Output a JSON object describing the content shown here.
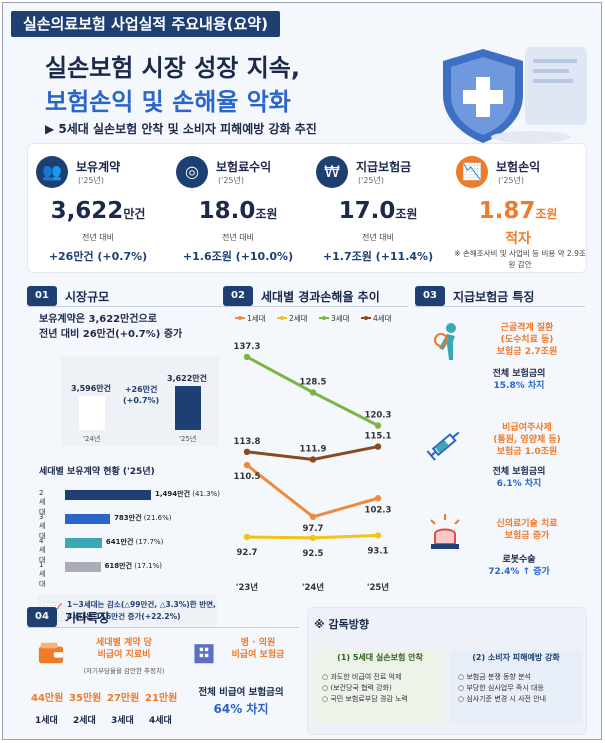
{
  "header": {
    "tag": "실손의료보험 사업실적 주요내용(요약)",
    "title_line1": "실손보험 시장 성장 지속,",
    "title_line2": "보험손익 및 손해율 악화",
    "subtitle": "▶ 5세대 실손보험 안착 및 소비자 피해예방 강화 추진"
  },
  "kpis": [
    {
      "name": "보유계약",
      "year": "('25년)",
      "value": "3,622",
      "unit": "만건",
      "compare": "전년 대비",
      "delta": "+26만건 (+0.7%)",
      "icon": "people-icon"
    },
    {
      "name": "보험료수익",
      "year": "('25년)",
      "value": "18.0",
      "unit": "조원",
      "compare": "전년 대비",
      "delta": "+1.6조원 (+10.0%)",
      "icon": "coins-icon"
    },
    {
      "name": "지급보험금",
      "year": "('25년)",
      "value": "17.0",
      "unit": "조원",
      "compare": "전년 대비",
      "delta": "+1.7조원 (+11.4%)",
      "icon": "won-hand-icon"
    },
    {
      "name": "보험손익",
      "year": "('25년)",
      "value": "1.87",
      "unit": "조원",
      "status": "적자",
      "note": "※ 손해조사비 및 사업비 등 비용 약 2.9조원 감안",
      "icon": "chart-down-icon"
    }
  ],
  "market": {
    "num": "01",
    "title": "시장규모",
    "summary_line1": "보유계약은 3,622만건으로",
    "summary_line2": "전년 대비 26만건(+0.7%) 증가",
    "bars": [
      {
        "year": "'24년",
        "value": 3596,
        "label": "3,596만건"
      },
      {
        "year": "'25년",
        "value": 3622,
        "label": "3,622만건"
      }
    ],
    "delta_line1": "+26만건",
    "delta_line2": "(+0.7%)",
    "gen_title": "세대별 보유계약 현황 ('25년)",
    "generations": [
      {
        "name": "2세대",
        "value": 1494,
        "label": "1,494만건",
        "pct": "(41.3%)",
        "color": "#1d3f72"
      },
      {
        "name": "3세대",
        "value": 783,
        "label": "783만건",
        "pct": "(21.6%)",
        "color": "#2a66c9"
      },
      {
        "name": "4세대",
        "value": 641,
        "label": "641만건",
        "pct": "(17.7%)",
        "color": "#3aa8b5"
      },
      {
        "name": "1세대",
        "value": 618,
        "label": "618만건",
        "pct": "(17.1%)",
        "color": "#a9adb5"
      }
    ],
    "note_line1": "1~3세대는 감소(△99만건, △3.3%)한 반면,",
    "note_line2": "4세대는 116만건 증가(+22.2%)"
  },
  "loss": {
    "num": "02",
    "title": "세대별 경과손해율 추이"
  },
  "chart_data": {
    "type": "line",
    "categories": [
      "'23년",
      "'24년",
      "'25년"
    ],
    "series": [
      {
        "name": "1세대",
        "color": "#ef8a3c",
        "values": [
          110.5,
          97.7,
          102.3
        ]
      },
      {
        "name": "2세대",
        "color": "#f2c318",
        "values": [
          92.7,
          92.5,
          93.1
        ]
      },
      {
        "name": "3세대",
        "color": "#7cb342",
        "values": [
          137.3,
          128.5,
          120.3
        ]
      },
      {
        "name": "4세대",
        "color": "#8a4a1e",
        "values": [
          113.8,
          111.9,
          115.1
        ]
      }
    ],
    "value_labels": {
      "1세대": [
        "110.5",
        "97.7",
        "102.3"
      ],
      "2세대": [
        "92.7",
        "92.5",
        "93.1"
      ],
      "3세대": [
        "137.3",
        "128.5",
        "120.3"
      ],
      "4세대": [
        "113.8",
        "111.9",
        "115.1"
      ]
    },
    "legend": "top"
  },
  "insured": {
    "num": "03",
    "title": "지급보험금 특징",
    "items": [
      {
        "title_lines": [
          "근골격계 질환",
          "(도수치료 등)",
          "보험금 2.7조원"
        ],
        "text": "전체 보험금의",
        "accent": "15.8% 차지",
        "icon": "back-pain-icon"
      },
      {
        "title_lines": [
          "비급여주사제",
          "(통원, 영양제 등)",
          "보험금 1.0조원"
        ],
        "text": "전체 보험금의",
        "accent": "6.1% 차지",
        "icon": "syringe-icon"
      },
      {
        "title_lines": [
          "신의료기술 치료",
          "보험금 증가"
        ],
        "text": "로봇수술",
        "accent": "72.4% ↑ 증가",
        "icon": "alarm-light-icon"
      }
    ]
  },
  "etc": {
    "num": "04",
    "title": "기타특징",
    "card1_title_line1": "세대별 계약 당",
    "card1_title_line2": "비급여 지료비",
    "card1_sub": "(자기부담율을 감안한 추정치)",
    "amounts": [
      "44만원",
      "35만원",
      "27만원",
      "21만원"
    ],
    "generations": [
      "1세대",
      "2세대",
      "3세대",
      "4세대"
    ],
    "card2_title_line1": "병 · 의원",
    "card2_title_line2": "비급여 보험금",
    "share_text": "전체 비급여 보험금의",
    "share_value": "64% 차지"
  },
  "supervision": {
    "title": "※ 감독방향",
    "boxes": [
      {
        "head": "(1) 5세대 실손보험 안착",
        "items": [
          "과도한 비급여 진료 억제",
          "(보건당국 협력 강화)",
          "국민 보험료부담 경감 노력"
        ]
      },
      {
        "head": "(2) 소비자 피해예방 강화",
        "items": [
          "보험금 분쟁 동향 분석",
          "부당한 심사업무 즉시 대응",
          "심사기준 변경 시 사전 안내"
        ]
      }
    ]
  }
}
